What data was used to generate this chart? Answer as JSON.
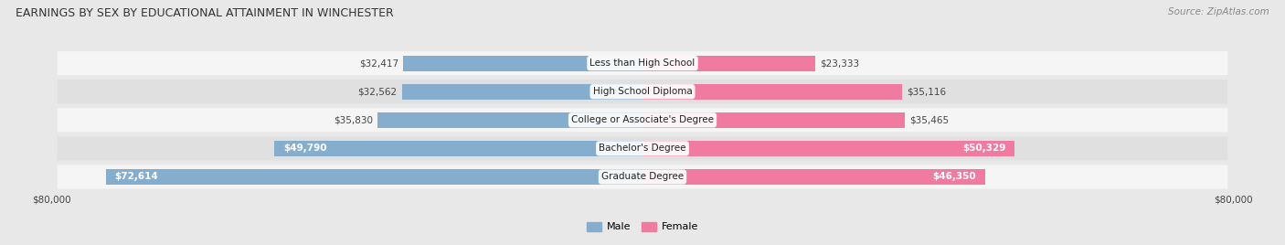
{
  "title": "EARNINGS BY SEX BY EDUCATIONAL ATTAINMENT IN WINCHESTER",
  "source": "Source: ZipAtlas.com",
  "categories": [
    "Less than High School",
    "High School Diploma",
    "College or Associate's Degree",
    "Bachelor's Degree",
    "Graduate Degree"
  ],
  "male_values": [
    32417,
    32562,
    35830,
    49790,
    72614
  ],
  "female_values": [
    23333,
    35116,
    35465,
    50329,
    46350
  ],
  "max_value": 80000,
  "male_color": "#85AECE",
  "female_color": "#F07AA0",
  "bg_color": "#e8e8e8",
  "row_bg_light": "#f5f5f5",
  "row_bg_dark": "#e0e0e0",
  "title_fontsize": 9,
  "source_fontsize": 7.5,
  "bar_label_fontsize": 7.5,
  "category_fontsize": 7.5,
  "axis_label_fontsize": 7.5,
  "legend_fontsize": 8,
  "bar_height": 0.55,
  "inside_label_threshold_male": 40000,
  "inside_label_threshold_female": 40000
}
